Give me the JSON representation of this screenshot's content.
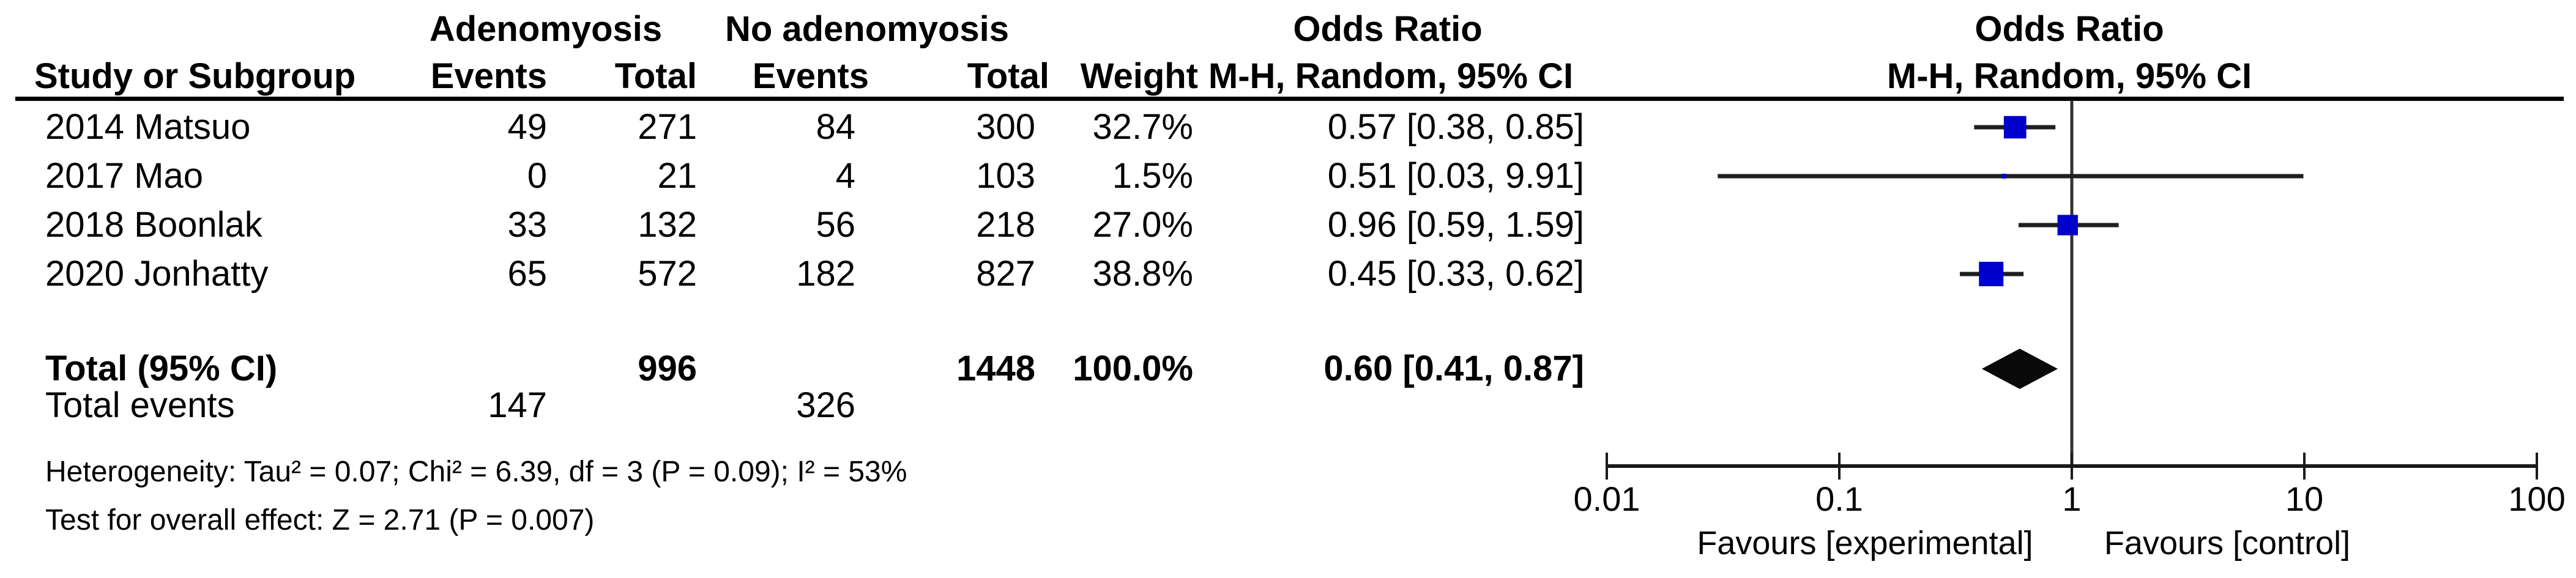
{
  "colors": {
    "background": "#ffffff",
    "text": "#000000",
    "effect_square": "#0000CD",
    "ci_line": "#1f1f1f",
    "diamond": "#0a0a0a",
    "axis_line": "#1a1a1a",
    "null_line": "#333333",
    "header_rule": "#000000"
  },
  "header": {
    "group1": "Adenomyosis",
    "group2": "No adenomyosis",
    "odds_ratio_left": "Odds Ratio",
    "odds_ratio_right": "Odds Ratio",
    "study": "Study or Subgroup",
    "events1": "Events",
    "total1": "Total",
    "events2": "Events",
    "total2": "Total",
    "weight": "Weight",
    "method_left": "M-H, Random, 95% CI",
    "method_right": "M-H, Random, 95% CI"
  },
  "rows": [
    {
      "study": "2014 Matsuo",
      "events1": "49",
      "total1": "271",
      "events2": "84",
      "total2": "300",
      "weight": "32.7%",
      "ci": "0.57 [0.38, 0.85]"
    },
    {
      "study": "2017 Mao",
      "events1": "0",
      "total1": "21",
      "events2": "4",
      "total2": "103",
      "weight": "1.5%",
      "ci": "0.51 [0.03, 9.91]"
    },
    {
      "study": "2018 Boonlak",
      "events1": "33",
      "total1": "132",
      "events2": "56",
      "total2": "218",
      "weight": "27.0%",
      "ci": "0.96 [0.59, 1.59]"
    },
    {
      "study": "2020 Jonhatty",
      "events1": "65",
      "total1": "572",
      "events2": "182",
      "total2": "827",
      "weight": "38.8%",
      "ci": "0.45 [0.33, 0.62]"
    }
  ],
  "total_row": {
    "label": "Total (95% CI)",
    "total1": "996",
    "total2": "1448",
    "weight": "100.0%",
    "ci": "0.60 [0.41, 0.87]"
  },
  "total_events_row": {
    "label": "Total events",
    "events1": "147",
    "events2": "326"
  },
  "footnotes": {
    "heterogeneity": "Heterogeneity: Tau² = 0.07; Chi² = 6.39, df = 3 (P = 0.09); I² = 53%",
    "overall_effect": "Test for overall effect: Z = 2.71 (P = 0.007)"
  },
  "chart_data": {
    "type": "scatter",
    "subtype": "forest-plot",
    "x_scale": "log10",
    "x_range": [
      0.01,
      100
    ],
    "axis_ticks": [
      0.01,
      0.1,
      1,
      10,
      100
    ],
    "tick_labels": [
      "0.01",
      "0.1",
      "1",
      "10",
      "100"
    ],
    "null_line": 1,
    "grid": false,
    "legend": "none",
    "series": [
      {
        "name": "2014 Matsuo",
        "or": 0.57,
        "ci_low": 0.38,
        "ci_high": 0.85,
        "weight_pct": 32.7
      },
      {
        "name": "2017 Mao",
        "or": 0.51,
        "ci_low": 0.03,
        "ci_high": 9.91,
        "weight_pct": 1.5
      },
      {
        "name": "2018 Boonlak",
        "or": 0.96,
        "ci_low": 0.59,
        "ci_high": 1.59,
        "weight_pct": 27.0
      },
      {
        "name": "2020 Jonhatty",
        "or": 0.45,
        "ci_low": 0.33,
        "ci_high": 0.62,
        "weight_pct": 38.8
      }
    ],
    "pooled": {
      "label": "Total (95% CI)",
      "or": 0.6,
      "ci_low": 0.41,
      "ci_high": 0.87,
      "weight_pct": 100.0
    },
    "xlabel_left": "Favours [experimental]",
    "xlabel_right": "Favours [control]"
  }
}
